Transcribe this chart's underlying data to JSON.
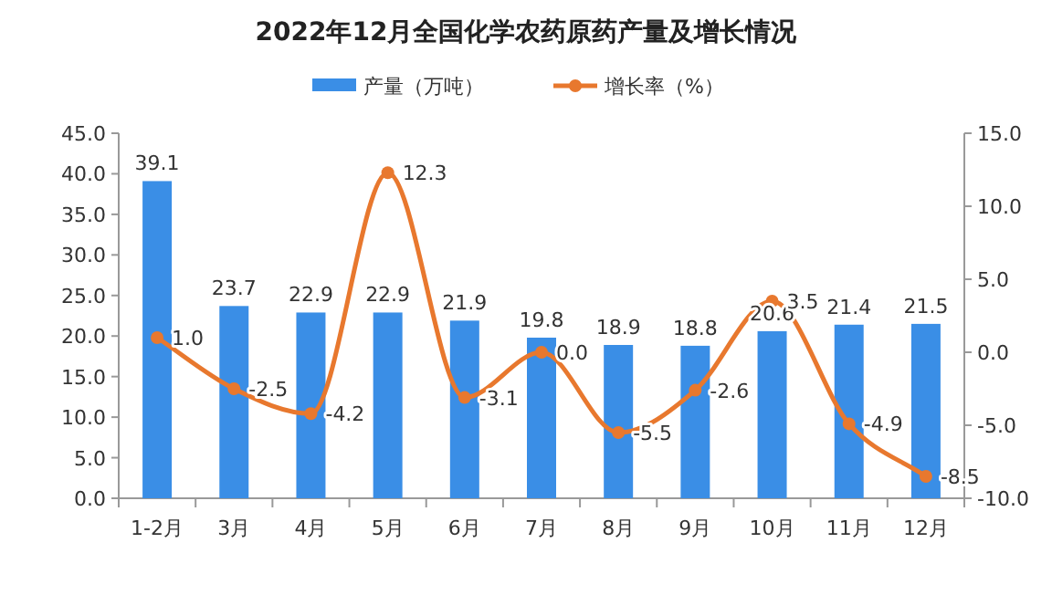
{
  "chart_data": {
    "type": "bar",
    "title": "2022年12月全国化学农药原药产量及增长情况",
    "categories": [
      "1-2月",
      "3月",
      "4月",
      "5月",
      "6月",
      "7月",
      "8月",
      "9月",
      "10月",
      "11月",
      "12月"
    ],
    "series": [
      {
        "name": "产量（万吨）",
        "color": "#3a8ee6",
        "values": [
          39.1,
          23.7,
          22.9,
          22.9,
          21.9,
          19.8,
          18.9,
          18.8,
          20.6,
          21.4,
          21.5
        ],
        "value_labels": [
          "39.1",
          "23.7",
          "22.9",
          "22.9",
          "21.9",
          "19.8",
          "18.9",
          "18.8",
          "20.6",
          "21.4",
          "21.5"
        ]
      },
      {
        "name": "增长率（%）",
        "type": "line",
        "axis": "y2",
        "color": "#e8782e",
        "marker": "circle",
        "values": [
          1.0,
          -2.5,
          -4.2,
          12.3,
          -3.1,
          0.0,
          -5.5,
          -2.6,
          3.5,
          -4.9,
          -8.5
        ],
        "value_labels": [
          "1.0",
          "-2.5",
          "-4.2",
          "12.3",
          "-3.1",
          "0.0",
          "-5.5",
          "-2.6",
          "3.5",
          "-4.9",
          "-8.5"
        ]
      }
    ],
    "ylim": [
      0,
      45
    ],
    "yticks": [
      {
        "value": 0,
        "label": "0.0"
      },
      {
        "value": 5,
        "label": "5.0"
      },
      {
        "value": 10,
        "label": "10.0"
      },
      {
        "value": 15,
        "label": "15.0"
      },
      {
        "value": 20,
        "label": "20.0"
      },
      {
        "value": 25,
        "label": "25.0"
      },
      {
        "value": 30,
        "label": "30.0"
      },
      {
        "value": 35,
        "label": "35.0"
      },
      {
        "value": 40,
        "label": "40.0"
      },
      {
        "value": 45,
        "label": "45.0"
      }
    ],
    "y2lim": [
      -10,
      15
    ],
    "y2ticks": [
      {
        "value": -10,
        "label": "-10.0"
      },
      {
        "value": -5,
        "label": "-5.0"
      },
      {
        "value": 0,
        "label": "0.0"
      },
      {
        "value": 5,
        "label": "5.0"
      },
      {
        "value": 10,
        "label": "10.0"
      },
      {
        "value": 15,
        "label": "15.0"
      }
    ],
    "grid": false,
    "legend": "top"
  }
}
